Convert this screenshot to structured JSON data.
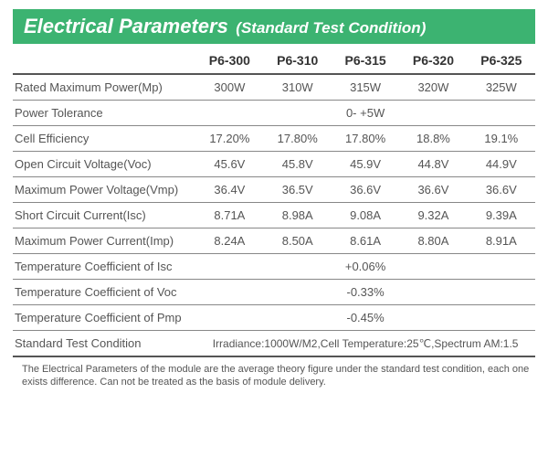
{
  "title": {
    "main": "Electrical Parameters",
    "sub": "(Standard Test Condition)"
  },
  "style": {
    "title_bg": "#3cb371",
    "title_color": "#ffffff",
    "title_main_fontsize": 22,
    "title_sub_fontsize": 17,
    "header_color": "#333333",
    "header_fontsize": 14,
    "cell_color": "#555555",
    "cell_fontsize": 13,
    "border_color": "#888888",
    "thick_border_color": "#555555",
    "footnote_color": "#555555",
    "footnote_fontsize": 11
  },
  "columns": [
    "",
    "P6-300",
    "P6-310",
    "P6-315",
    "P6-320",
    "P6-325"
  ],
  "rows": [
    {
      "label": "Rated Maximum Power(Mp)",
      "vals": [
        "300W",
        "310W",
        "315W",
        "320W",
        "325W"
      ]
    },
    {
      "label": "Power Tolerance",
      "span": "0- +5W"
    },
    {
      "label": "Cell Efficiency",
      "vals": [
        "17.20%",
        "17.80%",
        "17.80%",
        "18.8%",
        "19.1%"
      ]
    },
    {
      "label": "Open Circuit Voltage(Voc)",
      "vals": [
        "45.6V",
        "45.8V",
        "45.9V",
        "44.8V",
        "44.9V"
      ]
    },
    {
      "label": "Maximum Power Voltage(Vmp)",
      "vals": [
        "36.4V",
        "36.5V",
        "36.6V",
        "36.6V",
        "36.6V"
      ]
    },
    {
      "label": "Short Circuit Current(Isc)",
      "vals": [
        "8.71A",
        "8.98A",
        "9.08A",
        "9.32A",
        "9.39A"
      ]
    },
    {
      "label": "Maximum Power Current(Imp)",
      "vals": [
        "8.24A",
        "8.50A",
        "8.61A",
        "8.80A",
        "8.91A"
      ]
    },
    {
      "label": "Temperature Coefficient of Isc",
      "span": "+0.06%"
    },
    {
      "label": "Temperature Coefficient of Voc",
      "span": "-0.33%"
    },
    {
      "label": "Temperature Coefficient of Pmp",
      "span": "-0.45%"
    },
    {
      "label": "Standard Test Condition",
      "span": "Irradiance:1000W/M2,Cell Temperature:25℃,Spectrum AM:1.5"
    }
  ],
  "footnote": "The Electrical Parameters of the module are the average theory figure under the standard test condition, each one exists difference. Can not be treated as the basis of module delivery."
}
